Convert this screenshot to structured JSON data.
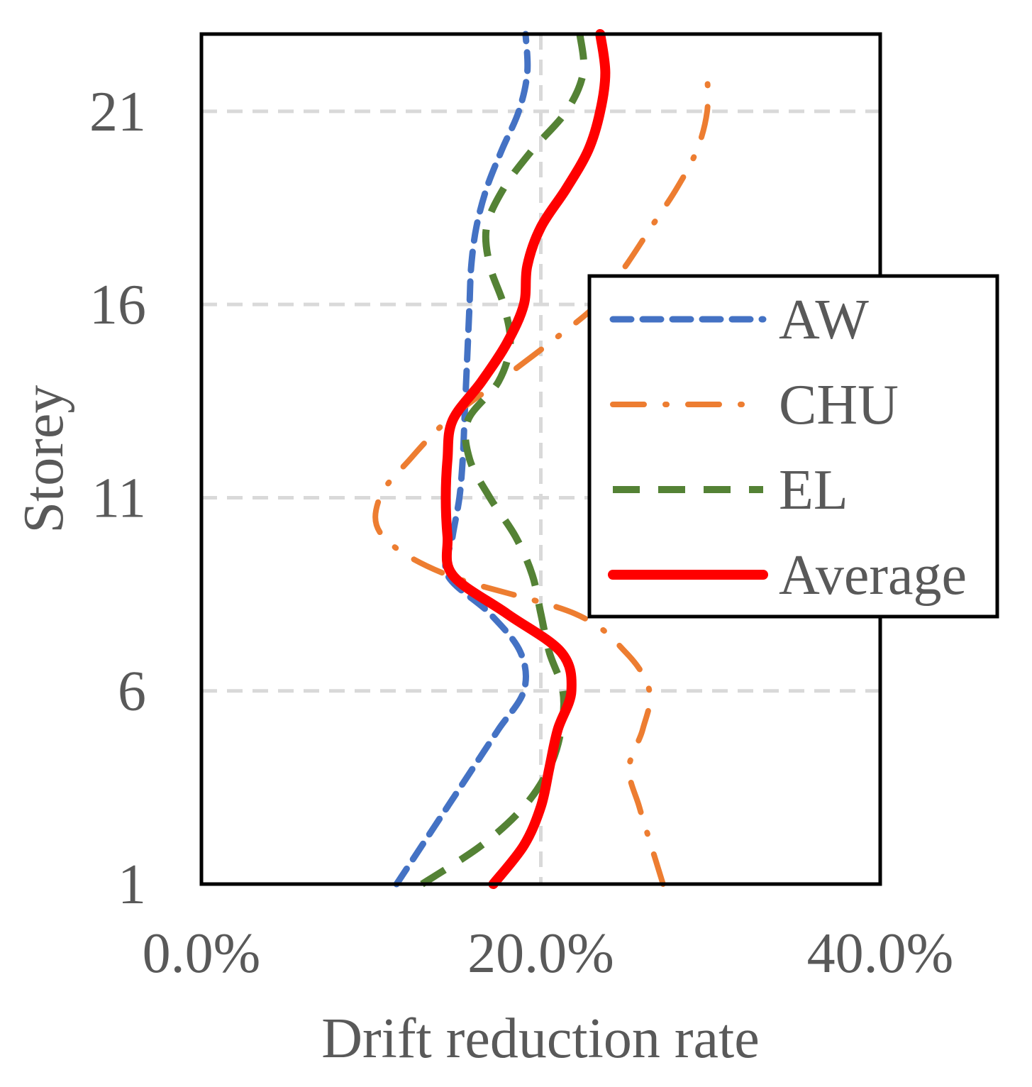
{
  "chart_data": {
    "type": "line",
    "title": "",
    "xlabel": "Drift reduction rate",
    "ylabel": "Storey",
    "xlim": [
      0,
      0.4
    ],
    "ylim": [
      1,
      23
    ],
    "x_ticks": [
      0,
      0.2,
      0.4
    ],
    "x_tick_labels": [
      "0.0%",
      "20.0%",
      "40.0%"
    ],
    "y_ticks": [
      1,
      6,
      11,
      16,
      21
    ],
    "y_tick_labels": [
      "1",
      "6",
      "11",
      "16",
      "21"
    ],
    "grid": true,
    "legend_position": "right",
    "series": [
      {
        "name": "AW",
        "color": "#4472C4",
        "style": "dashed",
        "storeys": [
          1,
          2,
          3,
          4,
          5,
          6,
          7,
          8,
          9,
          10,
          11,
          12,
          13,
          14,
          15,
          16,
          17,
          18,
          19,
          20,
          21,
          22,
          23
        ],
        "values": [
          0.115,
          0.13,
          0.145,
          0.16,
          0.175,
          0.19,
          0.188,
          0.17,
          0.145,
          0.148,
          0.152,
          0.154,
          0.155,
          0.156,
          0.157,
          0.158,
          0.159,
          0.162,
          0.168,
          0.177,
          0.187,
          0.192,
          0.191
        ]
      },
      {
        "name": "CHU",
        "color": "#ED7D31",
        "style": "dashdot",
        "storeys": [
          1,
          2,
          3,
          4,
          5,
          6,
          7,
          8,
          9,
          10,
          11,
          12,
          13,
          14,
          15,
          16,
          17,
          18,
          19,
          20,
          21,
          22
        ],
        "values": [
          0.272,
          0.265,
          0.258,
          0.252,
          0.26,
          0.264,
          0.25,
          0.22,
          0.145,
          0.107,
          0.105,
          0.123,
          0.145,
          0.175,
          0.205,
          0.233,
          0.25,
          0.265,
          0.28,
          0.292,
          0.298,
          0.298
        ]
      },
      {
        "name": "EL",
        "color": "#548235",
        "style": "longdash",
        "storeys": [
          1,
          2,
          3,
          4,
          5,
          6,
          7,
          8,
          9,
          10,
          11,
          12,
          13,
          14,
          15,
          16,
          17,
          18,
          19,
          20,
          21,
          22,
          23
        ],
        "values": [
          0.13,
          0.165,
          0.19,
          0.205,
          0.212,
          0.213,
          0.205,
          0.2,
          0.195,
          0.185,
          0.17,
          0.158,
          0.157,
          0.175,
          0.182,
          0.178,
          0.17,
          0.168,
          0.178,
          0.195,
          0.215,
          0.225,
          0.223
        ]
      },
      {
        "name": "Average",
        "color": "#FF0000",
        "style": "solid",
        "storeys": [
          1,
          2,
          3,
          4,
          5,
          6,
          7,
          8,
          9,
          10,
          11,
          12,
          13,
          14,
          15,
          16,
          17,
          18,
          19,
          20,
          21,
          22,
          23
        ],
        "values": [
          0.172,
          0.19,
          0.2,
          0.205,
          0.21,
          0.218,
          0.212,
          0.18,
          0.148,
          0.145,
          0.144,
          0.145,
          0.148,
          0.165,
          0.18,
          0.19,
          0.192,
          0.2,
          0.215,
          0.228,
          0.235,
          0.238,
          0.235
        ]
      }
    ]
  }
}
